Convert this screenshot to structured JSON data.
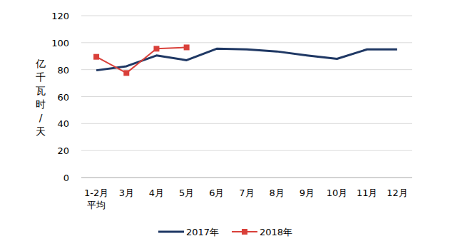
{
  "chart_data": {
    "type": "line",
    "y_label": "亿千瓦时/天",
    "categories": [
      "1-2月\n平均",
      "3月",
      "4月",
      "5月",
      "6月",
      "7月",
      "8月",
      "9月",
      "10月",
      "11月",
      "12月"
    ],
    "series": [
      {
        "name": "2017年",
        "color": "#1f3864",
        "marker": "none",
        "values": [
          79.5,
          82.5,
          90.5,
          87,
          95.5,
          95,
          93.5,
          90.5,
          88,
          95,
          95
        ]
      },
      {
        "name": "2018年",
        "color": "#d9403a",
        "marker": "square",
        "values": [
          89.5,
          77.5,
          95.5,
          96.5,
          null,
          null,
          null,
          null,
          null,
          null,
          null
        ]
      }
    ],
    "ylim": [
      0,
      120
    ],
    "yticks": [
      0,
      20,
      40,
      60,
      80,
      100,
      120
    ],
    "grid": true,
    "legend": "bottom"
  }
}
